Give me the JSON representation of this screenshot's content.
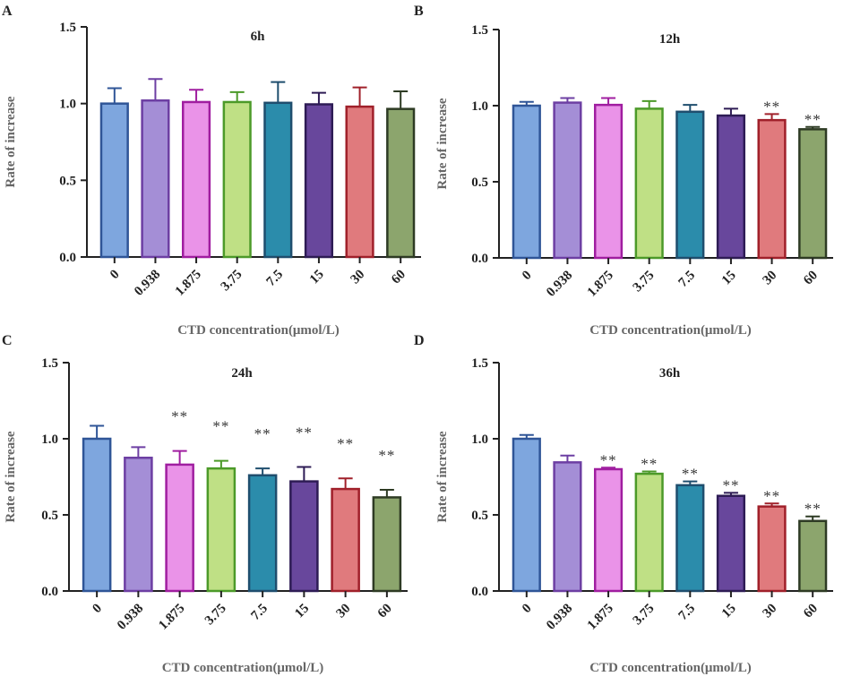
{
  "chart_data": [
    {
      "panel": "A",
      "type": "bar",
      "title": "6h",
      "xlabel": "CTD concentration(μmol/L)",
      "ylabel": "Rate of increase",
      "categories": [
        "0",
        "0.938",
        "1.875",
        "3.75",
        "7.5",
        "15",
        "30",
        "60"
      ],
      "values": [
        1.0,
        1.02,
        1.01,
        1.01,
        1.005,
        0.995,
        0.98,
        0.965
      ],
      "errors": [
        0.1,
        0.14,
        0.08,
        0.065,
        0.135,
        0.075,
        0.125,
        0.115
      ],
      "significance": [
        "",
        "",
        "",
        "",
        "",
        "",
        "",
        ""
      ],
      "ylim": [
        0,
        1.5
      ],
      "yticks": [
        "0.0",
        "0.5",
        "1.0",
        "1.5"
      ]
    },
    {
      "panel": "B",
      "type": "bar",
      "title": "12h",
      "xlabel": "CTD concentration(μmol/L)",
      "ylabel": "Rate of increase",
      "categories": [
        "0",
        "0.938",
        "1.875",
        "3.75",
        "7.5",
        "15",
        "30",
        "60"
      ],
      "values": [
        1.0,
        1.02,
        1.005,
        0.98,
        0.96,
        0.935,
        0.905,
        0.845
      ],
      "errors": [
        0.025,
        0.03,
        0.045,
        0.05,
        0.045,
        0.045,
        0.04,
        0.015
      ],
      "significance": [
        "",
        "",
        "",
        "",
        "",
        "",
        "**",
        "**"
      ],
      "ylim": [
        0,
        1.5
      ],
      "yticks": [
        "0.0",
        "0.5",
        "1.0",
        "1.5"
      ]
    },
    {
      "panel": "C",
      "type": "bar",
      "title": "24h",
      "xlabel": "CTD concentration(μmol/L)",
      "ylabel": "Rate of increase",
      "categories": [
        "0",
        "0.938",
        "1.875",
        "3.75",
        "7.5",
        "15",
        "30",
        "60"
      ],
      "values": [
        1.0,
        0.875,
        0.83,
        0.805,
        0.76,
        0.72,
        0.67,
        0.615
      ],
      "errors": [
        0.085,
        0.07,
        0.09,
        0.05,
        0.045,
        0.095,
        0.07,
        0.05
      ],
      "significance": [
        "",
        "",
        "**",
        "**",
        "**",
        "**",
        "**",
        "**"
      ],
      "ylim": [
        0,
        1.5
      ],
      "yticks": [
        "0.0",
        "0.5",
        "1.0",
        "1.5"
      ]
    },
    {
      "panel": "D",
      "type": "bar",
      "title": "36h",
      "xlabel": "CTD concentration(μmol/L)",
      "ylabel": "Rate of increase",
      "categories": [
        "0",
        "0.938",
        "1.875",
        "3.75",
        "7.5",
        "15",
        "30",
        "60"
      ],
      "values": [
        1.0,
        0.845,
        0.8,
        0.77,
        0.695,
        0.625,
        0.555,
        0.46
      ],
      "errors": [
        0.025,
        0.045,
        0.01,
        0.015,
        0.025,
        0.02,
        0.02,
        0.03
      ],
      "significance": [
        "",
        "",
        "**",
        "**",
        "**",
        "**",
        "**",
        "**"
      ],
      "ylim": [
        0,
        1.5
      ],
      "yticks": [
        "0.0",
        "0.5",
        "1.0",
        "1.5"
      ]
    }
  ],
  "colors": {
    "fills": [
      "#7ea6de",
      "#a48ed6",
      "#ea93e8",
      "#bfe085",
      "#2b8cab",
      "#68479c",
      "#e07a7d",
      "#8ca56d"
    ],
    "edges": [
      "#2f5597",
      "#6d3fa3",
      "#a01ea0",
      "#4c9a29",
      "#1f4e6e",
      "#2e1c55",
      "#a0202a",
      "#2e3b24"
    ],
    "axis": "#222222"
  }
}
